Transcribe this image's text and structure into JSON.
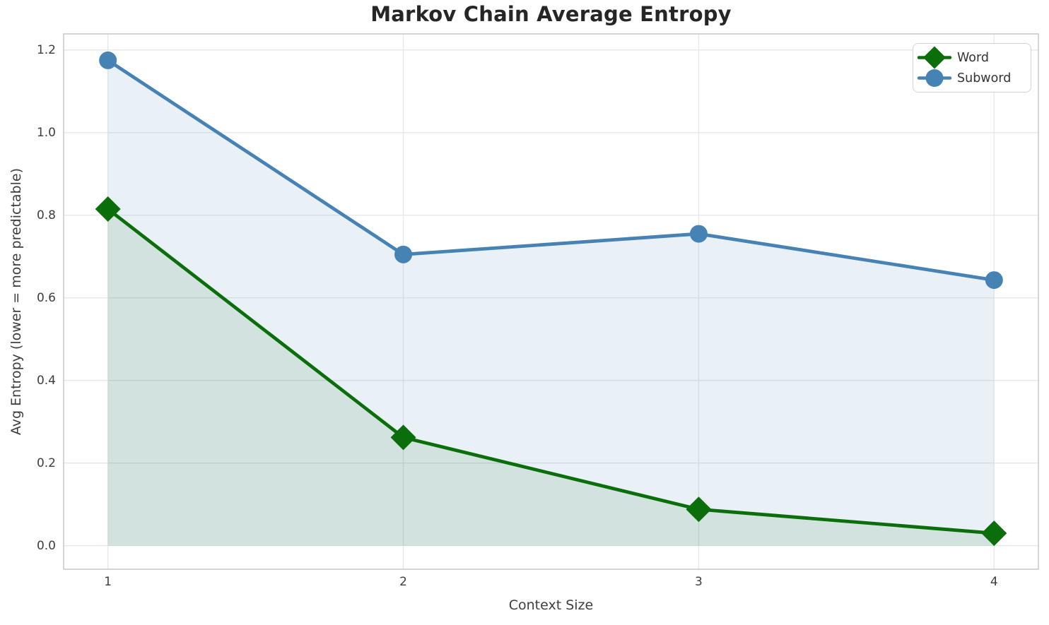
{
  "chart_data": {
    "type": "line",
    "title": "Markov Chain Average Entropy",
    "xlabel": "Context Size",
    "ylabel": "Avg Entropy (lower = more predictable)",
    "x": [
      1,
      2,
      3,
      4
    ],
    "series": [
      {
        "name": "Word",
        "values": [
          0.815,
          0.262,
          0.088,
          0.03
        ],
        "color": "#0a6e0a",
        "marker": "diamond",
        "fill_to_zero": true,
        "fill_opacity": 0.1
      },
      {
        "name": "Subword",
        "values": [
          1.175,
          0.705,
          0.755,
          0.643
        ],
        "color": "#4682b4",
        "marker": "circle",
        "fill_to_zero": true,
        "fill_opacity": 0.12
      }
    ],
    "xticks": [
      1,
      2,
      3,
      4
    ],
    "xtick_labels": [
      "1",
      "2",
      "3",
      "4"
    ],
    "yticks": [
      0.0,
      0.2,
      0.4,
      0.6,
      0.8,
      1.0,
      1.2
    ],
    "ytick_labels": [
      "0.0",
      "0.2",
      "0.4",
      "0.6",
      "0.8",
      "1.0",
      "1.2"
    ],
    "xlim": [
      0.85,
      4.15
    ],
    "ylim": [
      -0.057,
      1.239
    ],
    "grid": true,
    "legend_position": "upper right",
    "colors": {
      "grid": "#e7e7e7",
      "spine": "#cccccc",
      "title_text": "#262626",
      "axis_text": "#3d3d3d",
      "background": "#ffffff"
    }
  }
}
